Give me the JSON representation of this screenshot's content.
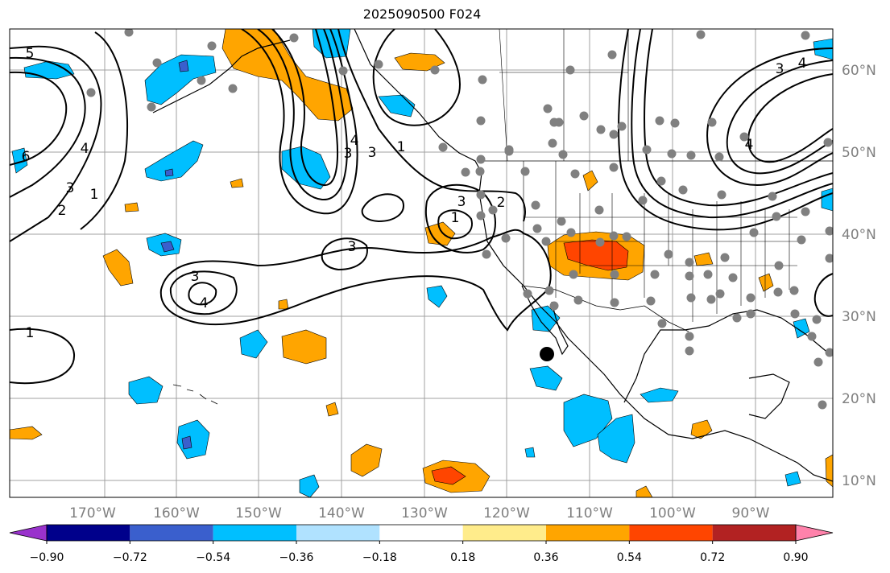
{
  "title": "2025090500 F024",
  "lon_labels": [
    "170°W",
    "160°W",
    "150°W",
    "140°W",
    "130°W",
    "120°W",
    "110°W",
    "100°W",
    "90°W"
  ],
  "lat_labels": [
    "60°N",
    "50°N",
    "40°N",
    "30°N",
    "20°N",
    "10°N"
  ],
  "colorbar": {
    "tick_labels": [
      "−0.90",
      "−0.72",
      "−0.54",
      "−0.36",
      "−0.18",
      "0.18",
      "0.36",
      "0.54",
      "0.72",
      "0.90"
    ],
    "colors": [
      "#9932cc",
      "#00008b",
      "#3a5fcd",
      "#00bfff",
      "#b0e2ff",
      "#ffffff",
      "#ffec8b",
      "#ffa500",
      "#ff4500",
      "#b22222",
      "#ff82ab"
    ]
  },
  "contour_labels": [
    "5",
    "6",
    "3",
    "2",
    "1",
    "4",
    "3",
    "4",
    "3",
    "1",
    "3",
    "4",
    "3",
    "1",
    "3",
    "2",
    "4",
    "3",
    "4",
    "1"
  ],
  "colors": {
    "land_outline": "#000000",
    "grid": "#a0a0a0",
    "station": "#808080",
    "positive_light": "#ffa500",
    "positive_strong": "#ff4500",
    "negative_light": "#00bfff",
    "negative_strong": "#3a5fcd"
  }
}
